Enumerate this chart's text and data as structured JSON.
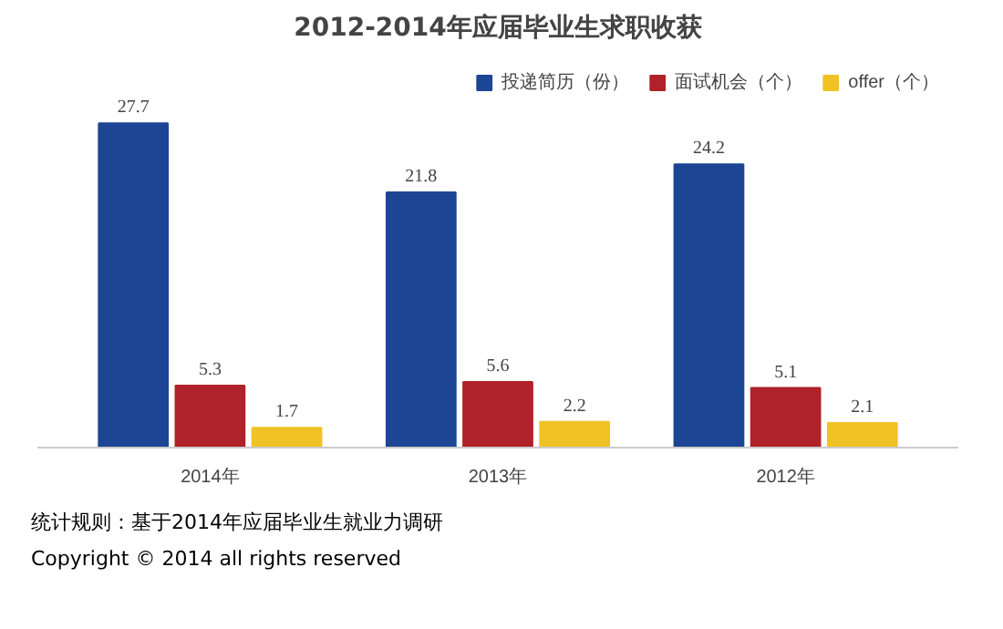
{
  "chart_data": {
    "type": "bar",
    "title": "2012-2014年应届毕业生求职收获",
    "categories": [
      "2014年",
      "2013年",
      "2012年"
    ],
    "series": [
      {
        "name": "投递简历（份）",
        "color": "#1c4694",
        "values": [
          27.7,
          21.8,
          24.2
        ]
      },
      {
        "name": "面试机会（个）",
        "color": "#b0222a",
        "values": [
          5.3,
          5.6,
          5.1
        ]
      },
      {
        "name": "offer（个）",
        "color": "#f0c224",
        "values": [
          1.7,
          2.2,
          2.1
        ]
      }
    ],
    "data_labels": true,
    "legend": "top right",
    "grid": false,
    "annotations": [
      "统计规则：基于2014年应届毕业生就业力调研",
      "Copyright © 2014 all rights reserved"
    ]
  }
}
